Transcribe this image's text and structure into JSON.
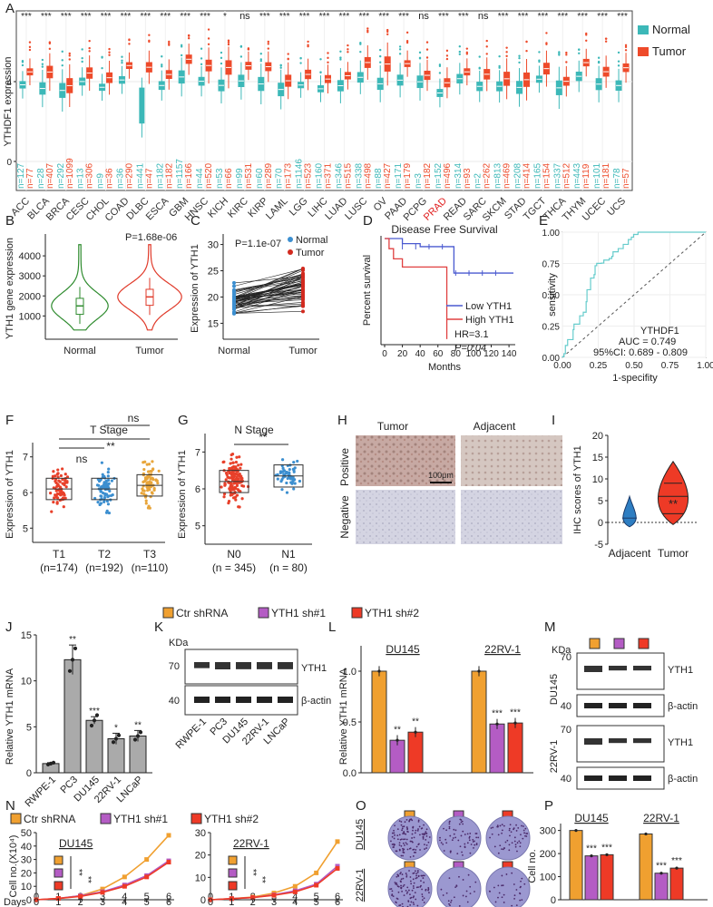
{
  "colors": {
    "normal": "#3cb8b8",
    "tumor": "#ee4a2a",
    "orange": "#f0a030",
    "purple": "#b45cc4",
    "red": "#ee3a26",
    "green": "#2e8b2e",
    "blue": "#3c8fd0",
    "gold": "#e8a53a",
    "navy": "#1a4a8a",
    "teal": "#66cccc",
    "gray": "#999999"
  },
  "panels": [
    "A",
    "B",
    "C",
    "D",
    "E",
    "F",
    "G",
    "H",
    "I",
    "J",
    "K",
    "L",
    "M",
    "N",
    "O",
    "P"
  ],
  "panelA": {
    "ylabel": "YTHDF1 expression",
    "yticks": [
      "0",
      "4"
    ],
    "legend": [
      "Normal",
      "Tumor"
    ],
    "cancers": [
      "ACC",
      "BLCA",
      "BRCA",
      "CESC",
      "CHOL",
      "COAD",
      "DLBC",
      "ESCA",
      "GBM",
      "HNSC",
      "KICH",
      "KIRC",
      "KIRP",
      "LAML",
      "LGG",
      "LIHC",
      "LUAD",
      "LUSC",
      "OV",
      "PAAD",
      "PCPG",
      "PRAD",
      "READ",
      "SARC",
      "SKCM",
      "STAD",
      "TGCT",
      "THCA",
      "THYM",
      "UCEC",
      "UCS"
    ],
    "sig": [
      "***",
      "***",
      "***",
      "***",
      "***",
      "***",
      "***",
      "***",
      "***",
      "***",
      "*",
      "ns",
      "***",
      "***",
      "***",
      "***",
      "***",
      "***",
      "***",
      "***",
      "ns",
      "***",
      "***",
      "ns",
      "***",
      "***",
      "***",
      "***",
      "***",
      "***",
      "***"
    ],
    "n_normal": [
      "n=127",
      "n=28",
      "n=292",
      "n=13",
      "n=9",
      "n=36",
      "n=441",
      "n=182",
      "n=1157",
      "n=44",
      "n=53",
      "n=99",
      "n=60",
      "n=70",
      "n=1146",
      "n=160",
      "n=346",
      "n=338",
      "n=88",
      "n=171",
      "n=3",
      "n=152",
      "n=314",
      "n=2",
      "n=813",
      "n=208",
      "n=165",
      "n=337",
      "n=443",
      "n=101",
      "n=78"
    ],
    "n_tumor": [
      "n=77",
      "n=407",
      "n=1099",
      "n=306",
      "n=36",
      "n=290",
      "n=47",
      "n=182",
      "n=166",
      "n=520",
      "n=66",
      "n=531",
      "n=289",
      "n=173",
      "n=523",
      "n=371",
      "n=515",
      "n=498",
      "n=427",
      "n=179",
      "n=182",
      "n=496",
      "n=93",
      "n=262",
      "n=469",
      "n=414",
      "n=154",
      "n=512",
      "n=119",
      "n=181",
      "n=57"
    ],
    "highlight": "PRAD"
  },
  "panelB": {
    "ylabel": "YTH1 gene expression",
    "yticks": [
      "1000",
      "2000",
      "3000",
      "4000"
    ],
    "groups": [
      "Normal",
      "Tumor"
    ],
    "pvalue": "P=1.68e-06",
    "medians": [
      1500,
      1950
    ]
  },
  "panelC": {
    "ylabel": "Expression of YTH1",
    "yticks": [
      "15",
      "20",
      "25",
      "30"
    ],
    "groups": [
      "Normal",
      "Tumor"
    ],
    "pvalue": "P=1.1e-07",
    "legend": [
      "Normal",
      "Tumor"
    ]
  },
  "panelD": {
    "title": "Disease Free Survival",
    "ylabel": "Percent survival",
    "xlabel": "Months",
    "xticks": [
      "0",
      "20",
      "40",
      "60",
      "80",
      "100",
      "120",
      "140"
    ],
    "legend": [
      "Low YTH1",
      "High YTH1"
    ],
    "hr": "HR=3.1",
    "p": "P=0.04"
  },
  "panelE": {
    "ylabel": "sensitivity",
    "xlabel": "1-specifity",
    "yticks": [
      "0.00",
      "0.25",
      "0.50",
      "0.75",
      "1.00"
    ],
    "xticks": [
      "0.00",
      "0.25",
      "0.50",
      "0.75",
      "1.00"
    ],
    "gene": "YTHDF1",
    "auc": "AUC = 0.749",
    "ci": "95%CI: 0.689 - 0.809"
  },
  "panelF": {
    "title": "T Stage",
    "ylabel": "Expression of YTH1",
    "yticks": [
      "5",
      "6",
      "7"
    ],
    "groups": [
      "T1",
      "T2",
      "T3"
    ],
    "ns": [
      "(n=174)",
      "(n=192)",
      "(n=110)"
    ],
    "sig": [
      "ns",
      "**",
      "ns"
    ],
    "colors": [
      "#e8402a",
      "#3c8fd0",
      "#e8a53a"
    ],
    "medians": [
      6.1,
      6.1,
      6.2
    ]
  },
  "panelG": {
    "title": "N Stage",
    "ylabel": "Expression of YTH1",
    "yticks": [
      "5",
      "6",
      "7"
    ],
    "groups": [
      "N0",
      "N1"
    ],
    "ns": [
      "(n = 345)",
      "(n = 80)"
    ],
    "sig": "**",
    "colors": [
      "#e8402a",
      "#3c8fd0"
    ],
    "medians": [
      6.2,
      6.35
    ]
  },
  "panelH": {
    "cols": [
      "Tumor",
      "Adjacent"
    ],
    "rows": [
      "Positive",
      "Negative"
    ],
    "scale": "100μm"
  },
  "panelI": {
    "ylabel": "IHC scores of YTH1",
    "yticks": [
      "-5",
      "0",
      "5",
      "10",
      "15",
      "20"
    ],
    "groups": [
      "Adjacent",
      "Tumor"
    ],
    "sig": "**"
  },
  "chart_data": {
    "J": {
      "type": "bar",
      "ylabel": "Relative YTH1 mRNA",
      "categories": [
        "RWPE-1",
        "PC3",
        "DU145",
        "22RV-1",
        "LNCaP"
      ],
      "values": [
        1,
        12.3,
        5.7,
        3.7,
        4
      ],
      "errors": [
        0.1,
        1.6,
        0.4,
        0.6,
        0.6
      ],
      "sig": [
        "",
        "**",
        "***",
        "*",
        "**"
      ],
      "ylim": [
        0,
        15
      ],
      "yticks": [
        "0",
        "5",
        "10",
        "15"
      ]
    },
    "L": {
      "type": "bar",
      "ylabel": "Relative YTH1 mRNA",
      "groups": [
        "DU145",
        "22RV-1"
      ],
      "series": [
        {
          "name": "Ctr shRNA",
          "values": [
            1.0,
            1.0
          ]
        },
        {
          "name": "YTH1 sh#1",
          "values": [
            0.32,
            0.48
          ]
        },
        {
          "name": "YTH1 sh#2",
          "values": [
            0.4,
            0.49
          ]
        }
      ],
      "sig": [
        [
          "",
          "**",
          "**"
        ],
        [
          "",
          "***",
          "***"
        ]
      ],
      "ylim": [
        0,
        1.2
      ],
      "yticks": [
        "0.0",
        "0.5",
        "1.0"
      ]
    },
    "N": {
      "type": "line",
      "ylabel": "Cell no.(X10⁴)",
      "xlabel": "Days",
      "x": [
        0,
        1,
        2,
        3,
        4,
        5,
        6
      ],
      "xticks": [
        "0",
        "1",
        "2",
        "3",
        "4",
        "5",
        "6"
      ],
      "panels": [
        {
          "title": "DU145",
          "ylim": [
            0,
            50
          ],
          "yticks": [
            "0",
            "10",
            "20",
            "30",
            "40",
            "50"
          ],
          "series": [
            {
              "name": "Ctr shRNA",
              "values": [
                0,
                1,
                3,
                8,
                17,
                30,
                48
              ]
            },
            {
              "name": "YTH1 sh#1",
              "values": [
                0,
                1,
                3,
                6,
                11,
                18,
                29
              ]
            },
            {
              "name": "YTH1 sh#2",
              "values": [
                0,
                1,
                2.5,
                5.5,
                10,
                17,
                28
              ]
            }
          ],
          "sig": [
            "**",
            "**"
          ]
        },
        {
          "title": "22RV-1",
          "ylim": [
            0,
            30
          ],
          "yticks": [
            "0",
            "10",
            "20",
            "30"
          ],
          "series": [
            {
              "name": "Ctr shRNA",
              "values": [
                0,
                0.5,
                1.2,
                3,
                6,
                12,
                26
              ]
            },
            {
              "name": "YTH1 sh#1",
              "values": [
                0,
                0.5,
                1,
                2.2,
                4,
                7,
                15
              ]
            },
            {
              "name": "YTH1 sh#2",
              "values": [
                0,
                0.5,
                1,
                2,
                3.5,
                6.5,
                14
              ]
            }
          ],
          "sig": [
            "**",
            "**"
          ]
        }
      ]
    },
    "P": {
      "type": "bar",
      "ylabel": "Cell no.",
      "groups": [
        "DU145",
        "22RV-1"
      ],
      "series": [
        {
          "name": "Ctr shRNA",
          "values": [
            300,
            285
          ]
        },
        {
          "name": "YTH1 sh#1",
          "values": [
            190,
            115
          ]
        },
        {
          "name": "YTH1 sh#2",
          "values": [
            195,
            137
          ]
        }
      ],
      "sig": [
        [
          "",
          "***",
          "***"
        ],
        [
          "",
          "***",
          "***"
        ]
      ],
      "ylim": [
        0,
        330
      ],
      "yticks": [
        "0",
        "100",
        "200",
        "300"
      ]
    }
  },
  "legendShRNA": [
    "Ctr shRNA",
    "YTH1 sh#1",
    "YTH1 sh#2"
  ],
  "panelK": {
    "kda": "KDa",
    "marks": [
      "70",
      "40"
    ],
    "bands": [
      "YTH1",
      "β-actin"
    ],
    "lanes": [
      "RWPE-1",
      "PC3",
      "DU145",
      "22RV-1",
      "LNCaP"
    ]
  },
  "panelM": {
    "kda": "KDa",
    "cells": [
      "DU145",
      "22RV-1"
    ],
    "marks": [
      "70",
      "40"
    ],
    "bands": [
      "YTH1",
      "β-actin"
    ]
  },
  "panelO": {
    "rows": [
      "DU145",
      "22RV-1"
    ]
  }
}
